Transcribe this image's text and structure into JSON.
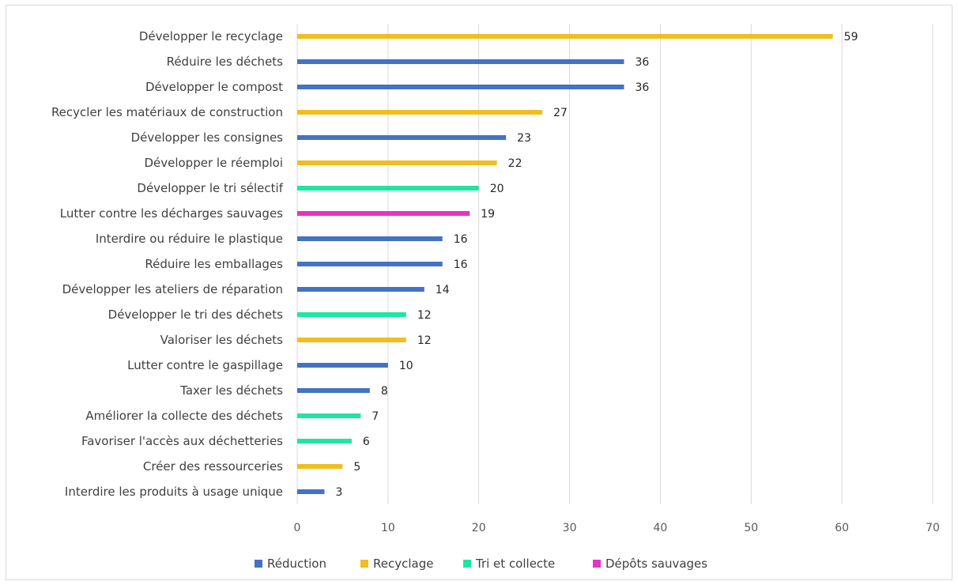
{
  "chart_data": {
    "type": "bar",
    "orientation": "horizontal",
    "categories": [
      "Développer le recyclage",
      "Réduire les déchets",
      "Développer le compost",
      "Recycler les matériaux de construction",
      "Développer les consignes",
      "Développer le réemploi",
      "Développer le tri sélectif",
      "Lutter contre les décharges sauvages",
      "Interdire ou réduire le plastique",
      "Réduire les emballages",
      "Développer les ateliers de réparation",
      "Développer le tri des déchets",
      "Valoriser les déchets",
      "Lutter contre le gaspillage",
      "Taxer les déchets",
      "Améliorer la collecte des déchets",
      "Favoriser l'accès aux déchetteries",
      "Créer des ressourceries",
      "Interdire les produits à usage unique"
    ],
    "values": [
      59,
      36,
      36,
      27,
      23,
      22,
      20,
      19,
      16,
      16,
      14,
      12,
      12,
      10,
      8,
      7,
      6,
      5,
      3
    ],
    "groups": [
      "Recyclage",
      "Réduction",
      "Réduction",
      "Recyclage",
      "Réduction",
      "Recyclage",
      "Tri et collecte",
      "Dépôts sauvages",
      "Réduction",
      "Réduction",
      "Réduction",
      "Tri et collecte",
      "Recyclage",
      "Réduction",
      "Réduction",
      "Tri et collecte",
      "Tri et collecte",
      "Recyclage",
      "Réduction"
    ],
    "legend": [
      {
        "name": "Réduction",
        "color": "#4472c4"
      },
      {
        "name": "Recyclage",
        "color": "#f0be1e"
      },
      {
        "name": "Tri et collecte",
        "color": "#1ee6a0"
      },
      {
        "name": "Dépôts sauvages",
        "color": "#e632c8"
      }
    ],
    "xlim": [
      0,
      70
    ],
    "xticks": [
      0,
      10,
      20,
      30,
      40,
      50,
      60,
      70
    ],
    "grid": "vertical",
    "legend_position": "bottom",
    "data_labels": true
  }
}
